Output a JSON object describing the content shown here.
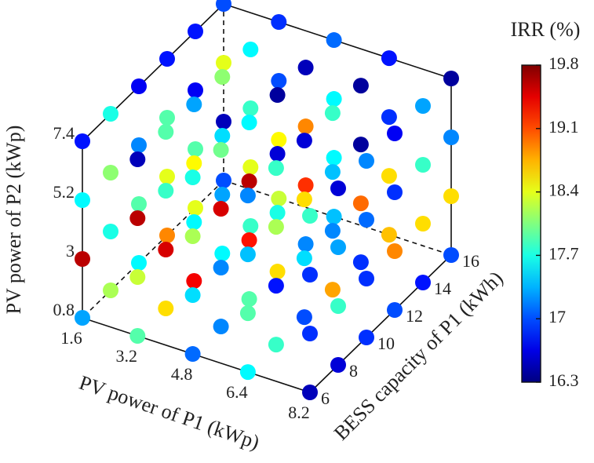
{
  "chart_data": {
    "type": "scatter3d",
    "xlabel": "PV power of P1 (kWp)",
    "ylabel": "BESS capacity of P1 (kWh)",
    "zlabel": "PV power of P2 (kWp)",
    "colorbar_title": "IRR (%)",
    "colormap": "jet",
    "xlim": [
      1.6,
      8.2
    ],
    "xticks": [
      1.6,
      3.2,
      4.8,
      6.4,
      8.2
    ],
    "ylim": [
      6,
      16
    ],
    "yticks": [
      6,
      8,
      10,
      12,
      14,
      16
    ],
    "zlim": [
      0.8,
      7.4
    ],
    "zticks": [
      0.8,
      3.0,
      5.2,
      7.4
    ],
    "clim": [
      16.3,
      19.8
    ],
    "cticks": [
      16.3,
      17.0,
      17.7,
      18.4,
      19.1,
      19.8
    ],
    "x": [
      1.6,
      3.2,
      4.8,
      6.4,
      8.2,
      1.6,
      3.2,
      4.8,
      6.4,
      8.2,
      1.6,
      3.2,
      4.8,
      6.4,
      8.2,
      1.6,
      3.2,
      4.8,
      6.4,
      8.2,
      1.6,
      3.2,
      4.8,
      6.4,
      8.2,
      1.6,
      3.2,
      4.8,
      6.4,
      8.2,
      1.6,
      3.2,
      4.8,
      6.4,
      8.2,
      1.6,
      3.2,
      4.8,
      6.4,
      8.2,
      1.6,
      3.2,
      4.8,
      6.4,
      8.2,
      1.6,
      3.2,
      4.8,
      6.4,
      8.2,
      1.6,
      3.2,
      4.8,
      6.4,
      8.2,
      1.6,
      3.2,
      4.8,
      6.4,
      8.2,
      1.6,
      3.2,
      4.8,
      6.4,
      8.2,
      1.6,
      3.2,
      4.8,
      6.4,
      8.2,
      1.6,
      3.2,
      4.8,
      6.4,
      8.2,
      1.6,
      3.2,
      4.8,
      6.4,
      8.2,
      1.6,
      3.2,
      4.8,
      6.4,
      8.2,
      1.6,
      3.2,
      4.8,
      6.4,
      8.2,
      1.6,
      3.2,
      4.8,
      6.4,
      8.2,
      1.6,
      3.2,
      4.8,
      6.4,
      8.2,
      1.6,
      3.2,
      4.8,
      6.4,
      8.2,
      1.6,
      3.2,
      4.8,
      6.4,
      8.2,
      1.6,
      3.2,
      4.8,
      6.4,
      8.2,
      1.6,
      3.2,
      4.8,
      6.4,
      8.2
    ],
    "y": [
      6,
      6,
      6,
      6,
      6,
      8,
      8,
      8,
      8,
      8,
      10,
      10,
      10,
      10,
      10,
      12,
      12,
      12,
      12,
      12,
      14,
      14,
      14,
      14,
      14,
      16,
      16,
      16,
      16,
      16,
      6,
      6,
      6,
      6,
      6,
      8,
      8,
      8,
      8,
      8,
      10,
      10,
      10,
      10,
      10,
      12,
      12,
      12,
      12,
      12,
      14,
      14,
      14,
      14,
      14,
      16,
      16,
      16,
      16,
      16,
      6,
      6,
      6,
      6,
      6,
      8,
      8,
      8,
      8,
      8,
      10,
      10,
      10,
      10,
      10,
      12,
      12,
      12,
      12,
      12,
      14,
      14,
      14,
      14,
      14,
      16,
      16,
      16,
      16,
      16,
      6,
      6,
      6,
      6,
      6,
      8,
      8,
      8,
      8,
      8,
      10,
      10,
      10,
      10,
      10,
      12,
      12,
      12,
      12,
      12,
      14,
      14,
      14,
      14,
      14,
      16,
      16,
      16,
      16,
      16
    ],
    "z": [
      0.8,
      0.8,
      0.8,
      0.8,
      0.8,
      0.8,
      0.8,
      0.8,
      0.8,
      0.8,
      0.8,
      0.8,
      0.8,
      0.8,
      0.8,
      0.8,
      0.8,
      0.8,
      0.8,
      0.8,
      0.8,
      0.8,
      0.8,
      0.8,
      0.8,
      0.8,
      0.8,
      0.8,
      0.8,
      0.8,
      3.0,
      3.0,
      3.0,
      3.0,
      3.0,
      3.0,
      3.0,
      3.0,
      3.0,
      3.0,
      3.0,
      3.0,
      3.0,
      3.0,
      3.0,
      3.0,
      3.0,
      3.0,
      3.0,
      3.0,
      3.0,
      3.0,
      3.0,
      3.0,
      3.0,
      3.0,
      3.0,
      3.0,
      3.0,
      3.0,
      5.2,
      5.2,
      5.2,
      5.2,
      5.2,
      5.2,
      5.2,
      5.2,
      5.2,
      5.2,
      5.2,
      5.2,
      5.2,
      5.2,
      5.2,
      5.2,
      5.2,
      5.2,
      5.2,
      5.2,
      5.2,
      5.2,
      5.2,
      5.2,
      5.2,
      5.2,
      5.2,
      5.2,
      5.2,
      5.2,
      7.4,
      7.4,
      7.4,
      7.4,
      7.4,
      7.4,
      7.4,
      7.4,
      7.4,
      7.4,
      7.4,
      7.4,
      7.4,
      7.4,
      7.4,
      7.4,
      7.4,
      7.4,
      7.4,
      7.4,
      7.4,
      7.4,
      7.4,
      7.4,
      7.4,
      7.4,
      7.4,
      7.4,
      7.4,
      7.4
    ],
    "values": [
      17.3,
      17.9,
      17.1,
      17.6,
      16.5,
      18.2,
      18.6,
      17.2,
      17.8,
      16.6,
      17.6,
      19.4,
      17.9,
      17.0,
      16.9,
      18.9,
      17.6,
      18.6,
      18.8,
      17.0,
      18.4,
      17.8,
      17.2,
      16.9,
      16.8,
      17.0,
      18.3,
      17.4,
      18.7,
      17.0,
      19.6,
      18.3,
      17.5,
      17.9,
      16.9,
      17.7,
      19.5,
      17.2,
      16.8,
      17.8,
      17.9,
      17.6,
      19.3,
      17.5,
      16.9,
      18.4,
      17.3,
      17.7,
      17.2,
      18.9,
      17.9,
      18.4,
      19.2,
      19.0,
      18.6,
      16.5,
      18.5,
      17.6,
      18.6,
      18.6,
      17.6,
      19.6,
      18.2,
      17.4,
      16.9,
      18.1,
      17.8,
      19.5,
      18.2,
      17.3,
      17.2,
      18.5,
      19.6,
      18.6,
      17.1,
      17.9,
      17.5,
      16.6,
      17.4,
      16.9,
      16.7,
      17.8,
      18.9,
      16.4,
      17.8,
      18.4,
      17.0,
      17.6,
      16.9,
      17.2,
      16.8,
      16.5,
      17.7,
      17.2,
      17.8,
      17.7,
      17.9,
      18.0,
      17.8,
      16.6,
      16.7,
      17.3,
      17.6,
      16.6,
      17.2,
      16.8,
      18.1,
      16.4,
      17.8,
      16.7,
      16.8,
      17.6,
      16.5,
      16.4,
      17.3,
      17.0,
      16.9,
      17.1,
      16.8,
      16.4
    ]
  }
}
